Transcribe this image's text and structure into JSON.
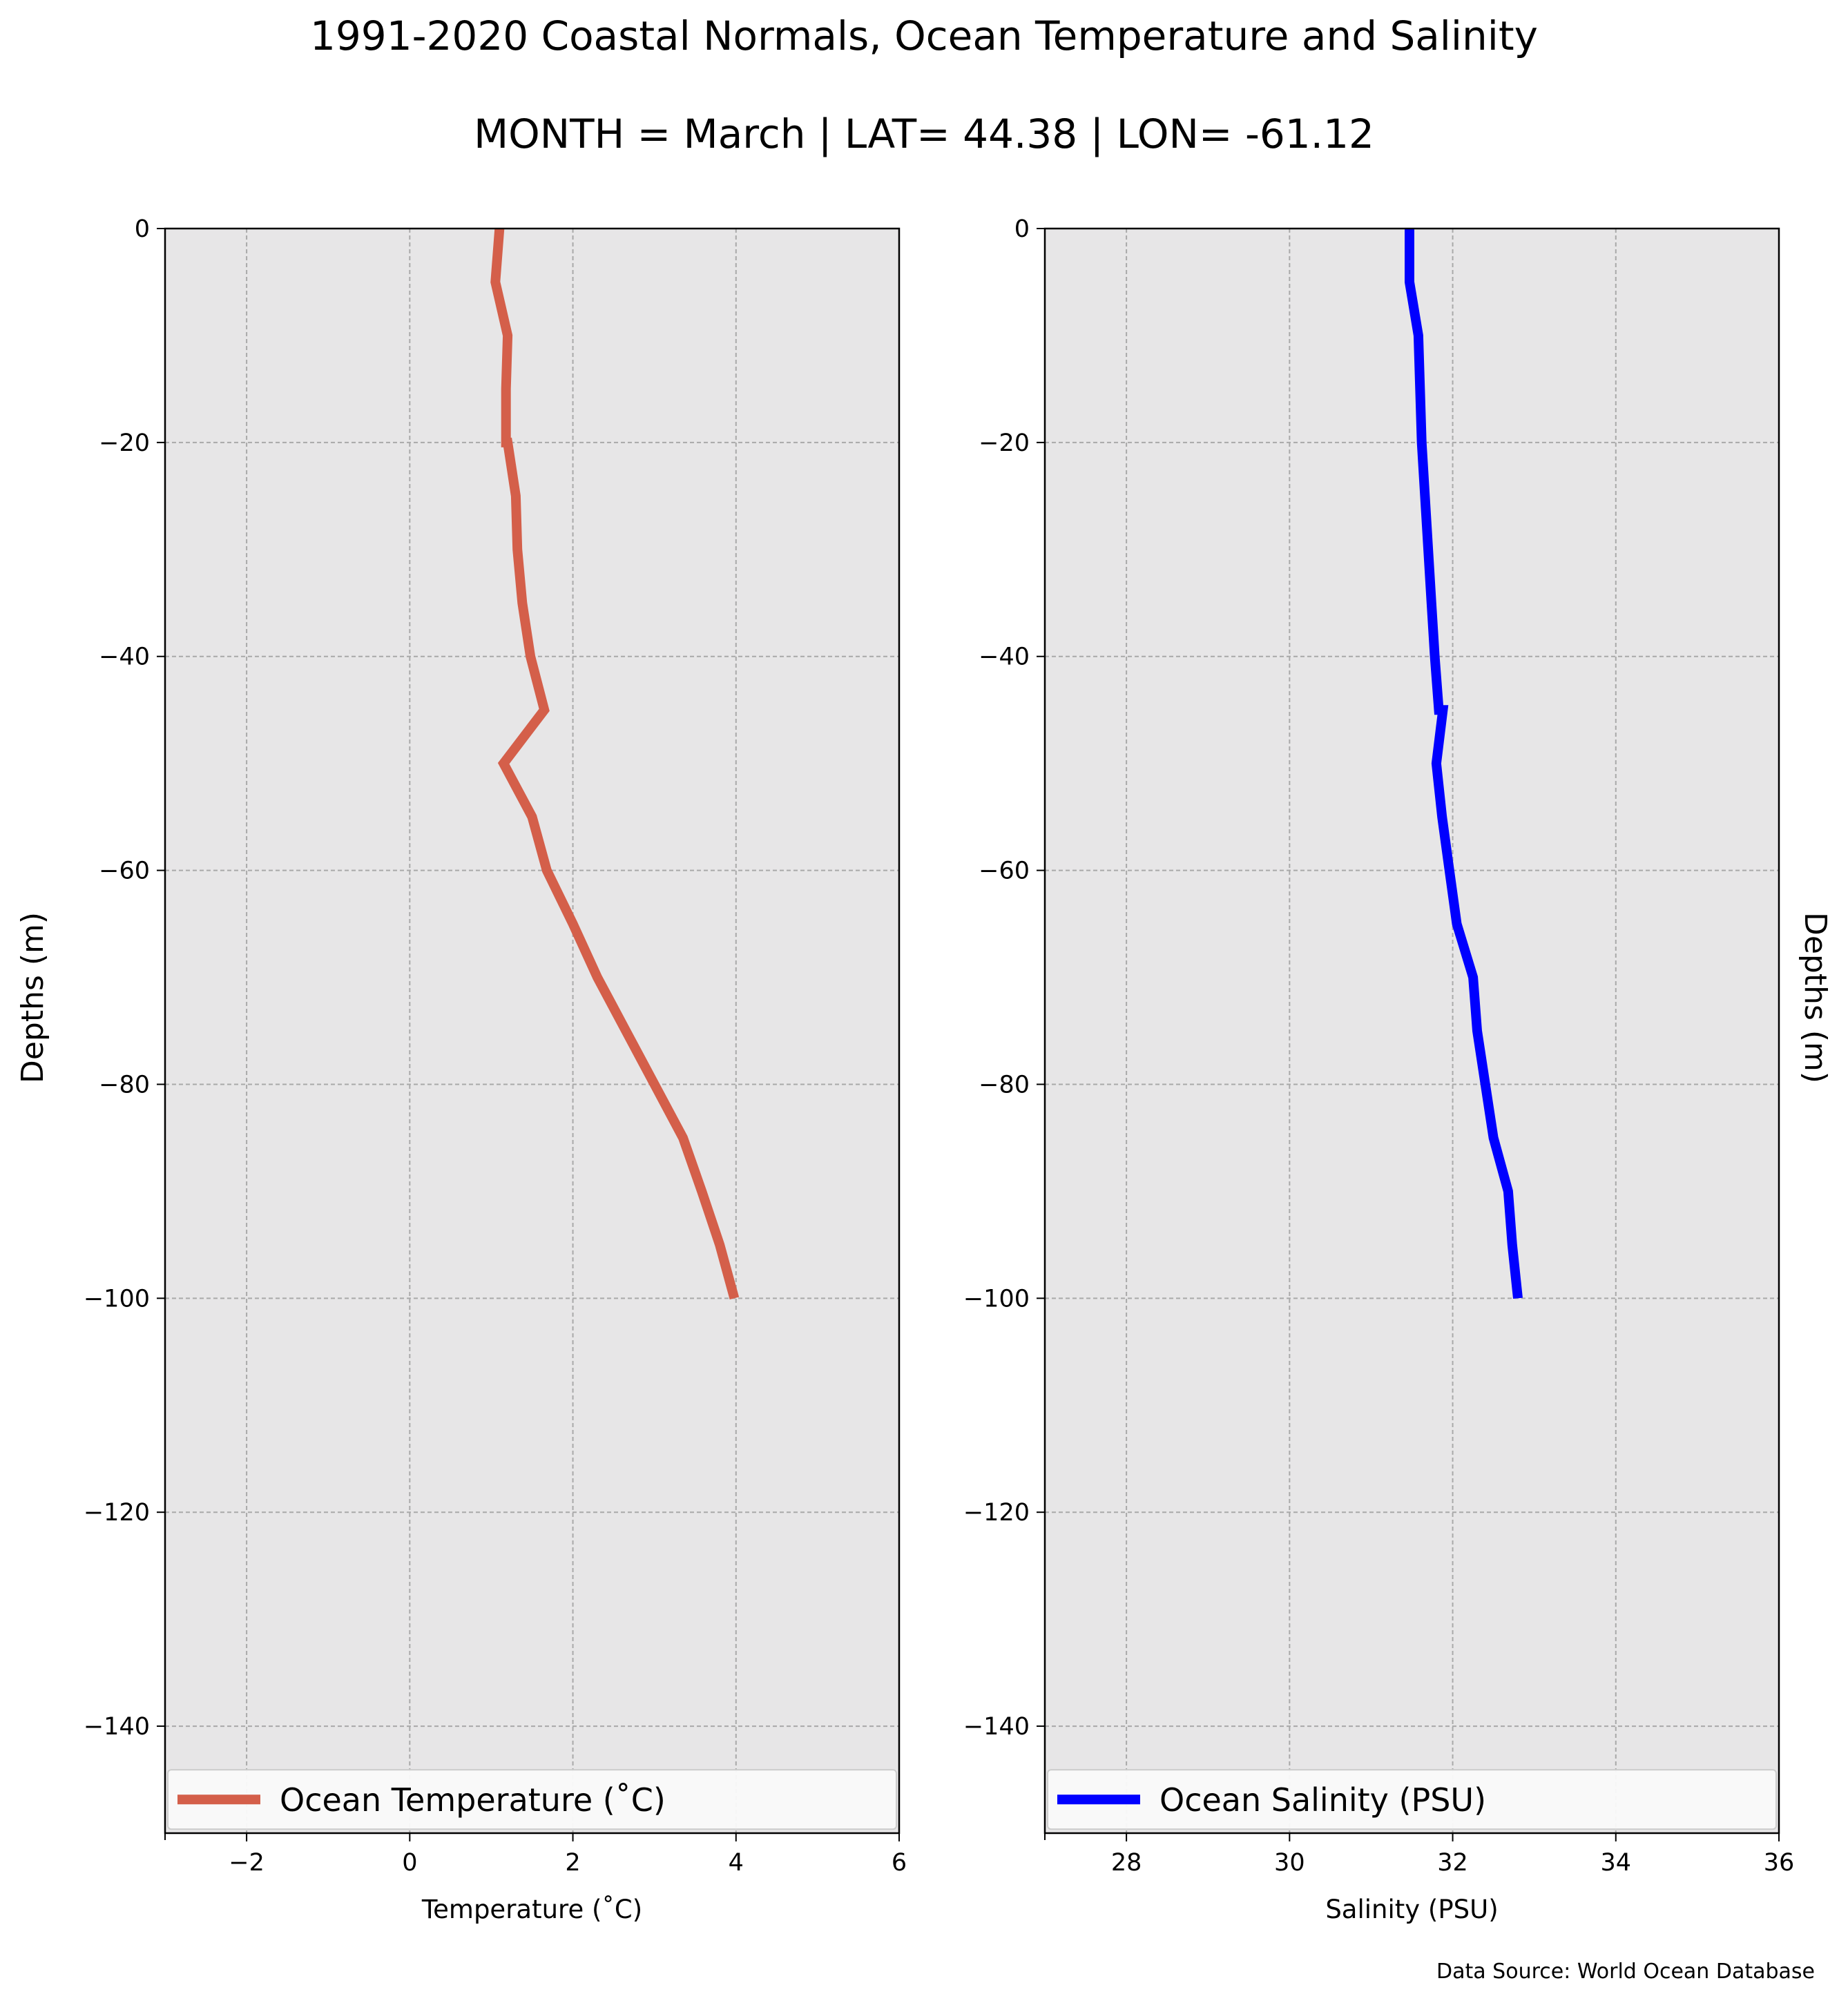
{
  "title": "1991-2020 Coastal Normals, Ocean Temperature and Salinity",
  "subtitle": "MONTH = March | LAT= 44.38 | LON= -61.12",
  "source": "Data Source: World Ocean Database",
  "chart_data": [
    {
      "type": "line",
      "xlabel": "Temperature (˚C)",
      "ylabel": "Depths (m)",
      "xlim": [
        -3,
        6
      ],
      "ylim": [
        -150,
        0
      ],
      "xticks": [
        -2,
        0,
        2,
        4,
        6
      ],
      "yticks": [
        0,
        -20,
        -40,
        -60,
        -80,
        -100,
        -120,
        -140
      ],
      "xtick_labels": [
        "−2",
        "0",
        "2",
        "4",
        "6"
      ],
      "ytick_labels": [
        "0",
        "−20",
        "−40",
        "−60",
        "−80",
        "−100",
        "−120",
        "−140"
      ],
      "grid": true,
      "legend": "bottom",
      "series": [
        {
          "name": "Ocean Temperature (˚C)",
          "color": "#d45f4a",
          "x": [
            1.1,
            1.05,
            1.2,
            1.18,
            1.18,
            1.2,
            1.3,
            1.32,
            1.38,
            1.48,
            1.65,
            1.15,
            1.5,
            1.68,
            2.0,
            2.3,
            2.65,
            3.0,
            3.35,
            3.58,
            3.8,
            3.98
          ],
          "y": [
            0,
            -5,
            -10,
            -15,
            -20,
            -20,
            -25,
            -30,
            -35,
            -40,
            -45,
            -50,
            -55,
            -60,
            -65,
            -70,
            -75,
            -80,
            -85,
            -90,
            -95,
            -100
          ]
        }
      ]
    },
    {
      "type": "line",
      "xlabel": "Salinity (PSU)",
      "ylabel": "Depths (m)",
      "xlim": [
        27,
        36
      ],
      "ylim": [
        -150,
        0
      ],
      "xticks": [
        28,
        30,
        32,
        34,
        36
      ],
      "yticks": [
        0,
        -20,
        -40,
        -60,
        -80,
        -100,
        -120,
        -140
      ],
      "xtick_labels": [
        "28",
        "30",
        "32",
        "34",
        "36"
      ],
      "ytick_labels": [
        "0",
        "−20",
        "−40",
        "−60",
        "−80",
        "−100",
        "−120",
        "−140"
      ],
      "grid": true,
      "legend": "bottom",
      "series": [
        {
          "name": "Ocean Salinity (PSU)",
          "color": "#0000ff",
          "x": [
            31.47,
            31.47,
            31.58,
            31.6,
            31.62,
            31.66,
            31.7,
            31.74,
            31.78,
            31.83,
            31.88,
            31.8,
            31.87,
            31.96,
            32.05,
            32.25,
            32.3,
            32.4,
            32.5,
            32.68,
            32.73,
            32.8
          ],
          "y": [
            0,
            -5,
            -10,
            -15,
            -20,
            -25,
            -30,
            -35,
            -40,
            -45,
            -45,
            -50,
            -55,
            -60,
            -65,
            -70,
            -75,
            -80,
            -85,
            -90,
            -95,
            -100
          ]
        }
      ]
    }
  ]
}
